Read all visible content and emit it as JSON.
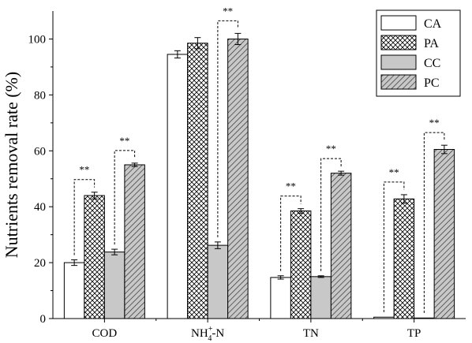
{
  "chart_data": {
    "type": "bar",
    "ylabel": "Nutrients removal rate (%)",
    "ylim": [
      0,
      110
    ],
    "yticks": [
      0,
      20,
      40,
      60,
      80,
      100
    ],
    "categories": [
      {
        "base": "COD",
        "sup": "",
        "sub": "",
        "tail": ""
      },
      {
        "base": "NH",
        "sup": "+",
        "sub": "4",
        "tail": "-N"
      },
      {
        "base": "TN",
        "sup": "",
        "sub": "",
        "tail": ""
      },
      {
        "base": "TP",
        "sup": "",
        "sub": "",
        "tail": ""
      }
    ],
    "series": [
      {
        "name": "CA",
        "pattern": "none",
        "color": "#ffffff",
        "values": [
          20.0,
          94.5,
          14.7,
          0.5
        ],
        "errors": [
          1.0,
          1.3,
          0.6,
          0.1
        ]
      },
      {
        "name": "PA",
        "pattern": "cross",
        "color": "#ffffff",
        "values": [
          44.0,
          98.5,
          38.5,
          42.8
        ],
        "errors": [
          1.2,
          2.0,
          0.8,
          1.5
        ]
      },
      {
        "name": "CC",
        "pattern": "solid",
        "color": "#c8c8c8",
        "values": [
          23.8,
          26.2,
          15.0,
          0.2
        ],
        "errors": [
          1.0,
          1.2,
          0.3,
          0.1
        ]
      },
      {
        "name": "PC",
        "pattern": "diag",
        "color": "#c8c8c8",
        "values": [
          55.0,
          100.0,
          52.0,
          60.5
        ],
        "errors": [
          0.6,
          2.0,
          0.7,
          1.5
        ]
      }
    ],
    "significance": [
      {
        "category": 0,
        "from": "CA",
        "to": "PA",
        "label": "**"
      },
      {
        "category": 0,
        "from": "CC",
        "to": "PC",
        "label": "**"
      },
      {
        "category": 1,
        "from": "CC",
        "to": "PC",
        "label": "**"
      },
      {
        "category": 2,
        "from": "CA",
        "to": "PA",
        "label": "**"
      },
      {
        "category": 2,
        "from": "CC",
        "to": "PC",
        "label": "**"
      },
      {
        "category": 3,
        "from": "CA",
        "to": "PA",
        "label": "**"
      },
      {
        "category": 3,
        "from": "CC",
        "to": "PC",
        "label": "**"
      }
    ],
    "legend_position": "top-right",
    "grid": false
  }
}
